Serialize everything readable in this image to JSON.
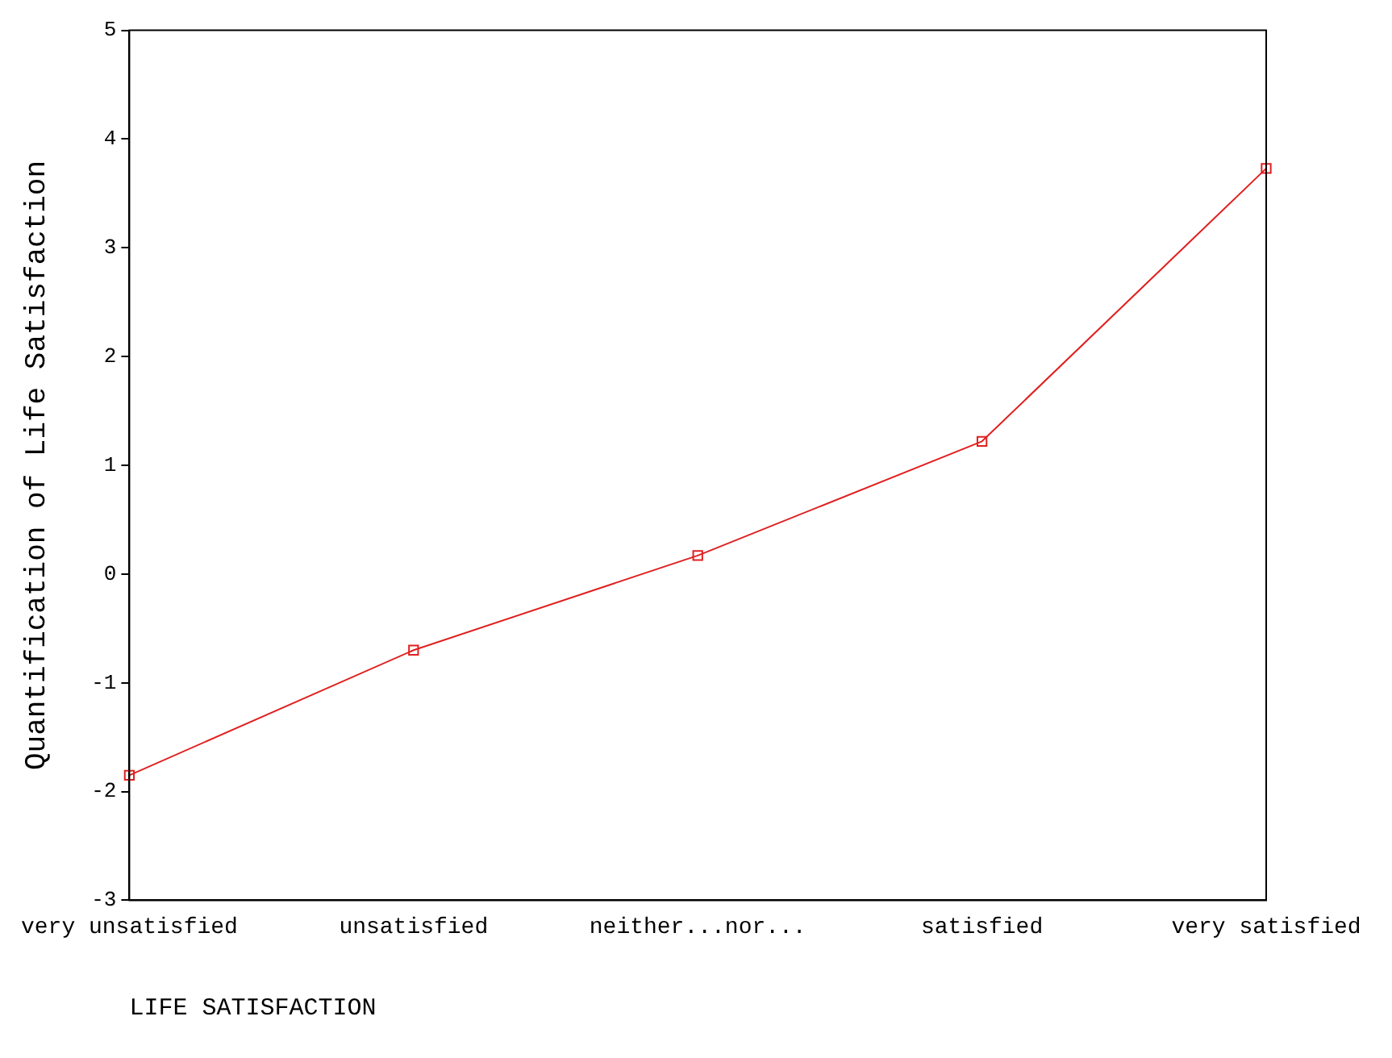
{
  "chart_data": {
    "type": "line",
    "xlabel": "LIFE SATISFACTION",
    "ylabel": "Quantification of Life Satisfaction",
    "categories": [
      "very unsatisfied",
      "unsatisfied",
      "neither...nor...",
      "satisfied",
      "very satisfied"
    ],
    "series": [
      {
        "color": "#e02020",
        "values": [
          -1.85,
          -0.7,
          0.17,
          1.22,
          3.73
        ]
      }
    ],
    "ylim": [
      -3,
      5
    ],
    "yticks": [
      -3,
      -2,
      -1,
      0,
      1,
      2,
      3,
      4,
      5
    ],
    "grid": false,
    "legend": false,
    "marker": "square",
    "line_style": "solid"
  }
}
